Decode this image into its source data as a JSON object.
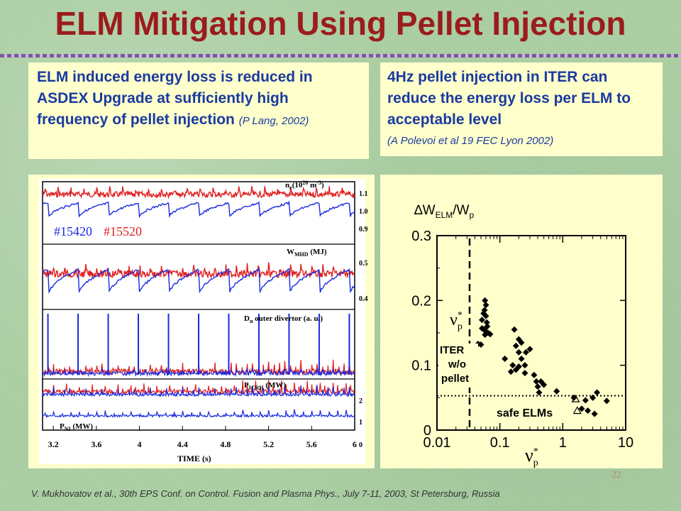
{
  "title": "ELM Mitigation Using Pellet Injection",
  "left_text": {
    "body": "ELM induced energy loss is reduced in ASDEX Upgrade at sufficiently high frequency of pellet injection",
    "citation": "(P Lang, 2002)"
  },
  "right_text": {
    "body": "4Hz pellet injection in ITER can reduce the energy loss per ELM to acceptable level",
    "citation": "(A Polevoi et al 19 FEC Lyon 2002)"
  },
  "footer": "V. Mukhovatov et al., 30th EPS Conf. on Control. Fusion and Plasma Phys., July 7-11, 2003, St Petersburg, Russia",
  "page_number": "22",
  "colors": {
    "title": "#9b1c1c",
    "text": "#1a3aa0",
    "box": "#ffffcc",
    "series_red": "#e02020",
    "series_blue": "#1a2ae0"
  },
  "chart_data": [
    {
      "type": "line",
      "xlabel": "TIME (s)",
      "x_ticks": [
        "3.2",
        "3.6",
        "4",
        "4.4",
        "4.8",
        "5.2",
        "5.6",
        "6"
      ],
      "xlim": [
        3.1,
        6.0
      ],
      "series_labels": [
        "#15420",
        "#15520"
      ],
      "panels": [
        {
          "label_main": "n",
          "label_sub": "e",
          "label_units": "(10",
          "label_exp": "20",
          "label_units2": " m",
          "label_exp2": "-3",
          "label_close": ")",
          "ticks": [
            "1.1",
            "1.0",
            "0.9"
          ]
        },
        {
          "label_main": "W",
          "label_sub": "MHD",
          "label_units": " (MJ)",
          "ticks": [
            "0.5",
            "0.4"
          ]
        },
        {
          "label_main": "D",
          "label_sub": "α",
          "label_units": " outer divertor (a. u.)",
          "ticks": []
        },
        {
          "label_main": "P",
          "label_sub": "ICRH",
          "label_units": " (MW)",
          "ticks": [
            "2",
            "1",
            "0"
          ]
        },
        {
          "label_main": "P",
          "label_sub": "NI",
          "label_units": " (MW)",
          "ticks": []
        }
      ]
    },
    {
      "type": "scatter",
      "title_prefix": "∆W",
      "title_sub": "ELM",
      "title_suffix": "/W",
      "title_sub2": "p",
      "xlabel_main": "ν",
      "xlabel_sup": "*",
      "xlabel_sub": "p",
      "x_scale": "log",
      "xlim": [
        0.01,
        10
      ],
      "ylim": [
        0,
        0.3
      ],
      "x_ticks": [
        "0.01",
        "0.1",
        "1",
        "10"
      ],
      "y_ticks": [
        "0",
        "0.1",
        "0.2",
        "0.3"
      ],
      "annotations": {
        "iter_line1": "ITER",
        "iter_line2": "w/o",
        "iter_line3": "pellet",
        "safe": "safe ELMs",
        "nu_main": "ν",
        "nu_sup": "*",
        "nu_sub": "p"
      },
      "vline_x": 0.033,
      "hline_y": 0.053,
      "points": [
        [
          0.045,
          0.133
        ],
        [
          0.05,
          0.132
        ],
        [
          0.052,
          0.17
        ],
        [
          0.055,
          0.18
        ],
        [
          0.058,
          0.2
        ],
        [
          0.06,
          0.193
        ],
        [
          0.057,
          0.185
        ],
        [
          0.06,
          0.176
        ],
        [
          0.062,
          0.166
        ],
        [
          0.052,
          0.157
        ],
        [
          0.056,
          0.155
        ],
        [
          0.06,
          0.152
        ],
        [
          0.065,
          0.15
        ],
        [
          0.07,
          0.148
        ],
        [
          0.058,
          0.147
        ],
        [
          0.063,
          0.16
        ],
        [
          0.12,
          0.11
        ],
        [
          0.15,
          0.09
        ],
        [
          0.16,
          0.1
        ],
        [
          0.18,
          0.093
        ],
        [
          0.17,
          0.155
        ],
        [
          0.2,
          0.14
        ],
        [
          0.18,
          0.13
        ],
        [
          0.2,
          0.12
        ],
        [
          0.22,
          0.11
        ],
        [
          0.25,
          0.1
        ],
        [
          0.26,
          0.12
        ],
        [
          0.25,
          0.088
        ],
        [
          0.2,
          0.098
        ],
        [
          0.22,
          0.135
        ],
        [
          0.3,
          0.125
        ],
        [
          0.35,
          0.085
        ],
        [
          0.38,
          0.075
        ],
        [
          0.4,
          0.067
        ],
        [
          0.45,
          0.075
        ],
        [
          0.42,
          0.058
        ],
        [
          0.5,
          0.07
        ],
        [
          0.8,
          0.06
        ],
        [
          1.5,
          0.05
        ],
        [
          2.0,
          0.033
        ],
        [
          2.3,
          0.046
        ],
        [
          2.5,
          0.03
        ],
        [
          3.0,
          0.05
        ],
        [
          3.5,
          0.058
        ],
        [
          3.2,
          0.025
        ],
        [
          5.0,
          0.045
        ]
      ],
      "open_points": [
        [
          1.6,
          0.048
        ],
        [
          1.7,
          0.03
        ]
      ]
    }
  ]
}
